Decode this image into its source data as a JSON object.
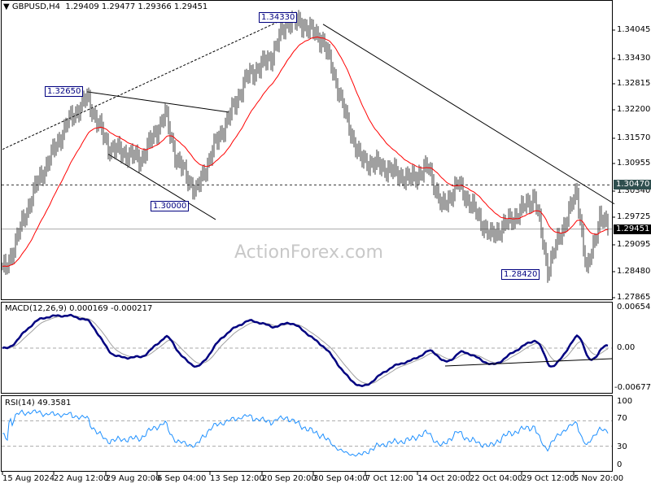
{
  "header": {
    "symbol": "GBPUSD,H4",
    "ohlc": "1.29409 1.29477 1.29366 1.29451"
  },
  "watermark": "ActionForex.com",
  "price_axis": [
    "1.34045",
    "1.33430",
    "1.32815",
    "1.32200",
    "1.31570",
    "1.30955",
    "1.30340",
    "1.29725",
    "1.29095",
    "1.28480",
    "1.27865"
  ],
  "price_tags": {
    "resistance": "1.30470",
    "current": "1.29451"
  },
  "annotations": [
    "1.32650",
    "1.34330",
    "1.30000",
    "1.28420"
  ],
  "macd": {
    "title": "MACD(12,26,9) 0.000169 -0.000217",
    "axis": [
      "0.006549",
      "0.00",
      "-0.006778"
    ]
  },
  "rsi": {
    "title": "RSI(14) 49.3581",
    "axis": [
      "100",
      "70",
      "30",
      "0"
    ]
  },
  "time_axis": [
    "15 Aug 2024",
    "22 Aug 12:00",
    "29 Aug 20:00",
    "6 Sep 04:00",
    "13 Sep 12:00",
    "20 Sep 20:00",
    "30 Sep 04:00",
    "7 Oct 12:00",
    "14 Oct 20:00",
    "22 Oct 04:00",
    "29 Oct 12:00",
    "5 Nov 20:00"
  ],
  "colors": {
    "ma": "#ff0000",
    "macd": "#000080",
    "signal": "#a0a0a0",
    "rsi": "#1e90ff",
    "bars": "#404040",
    "tag_resistance": "#2f4f4f",
    "tag_current": "#000000"
  },
  "chart_data": {
    "type": "ohlc",
    "instrument": "GBPUSD",
    "timeframe": "H4",
    "ylim": [
      1.27865,
      1.34045
    ],
    "close_keypoints": [
      [
        2,
        1.2852
      ],
      [
        20,
        1.304
      ],
      [
        40,
        1.3191
      ],
      [
        52,
        1.3248
      ],
      [
        65,
        1.3135
      ],
      [
        85,
        1.3106
      ],
      [
        100,
        1.321
      ],
      [
        107,
        1.3106
      ],
      [
        119,
        1.3031
      ],
      [
        130,
        1.3135
      ],
      [
        140,
        1.321
      ],
      [
        150,
        1.3295
      ],
      [
        165,
        1.3342
      ],
      [
        175,
        1.3427
      ],
      [
        185,
        1.3418
      ],
      [
        197,
        1.338
      ],
      [
        205,
        1.3286
      ],
      [
        212,
        1.3191
      ],
      [
        220,
        1.3106
      ],
      [
        235,
        1.3087
      ],
      [
        250,
        1.3059
      ],
      [
        262,
        1.3087
      ],
      [
        270,
        1.2993
      ],
      [
        280,
        1.3049
      ],
      [
        300,
        1.2927
      ],
      [
        315,
        1.2974
      ],
      [
        327,
        1.3021
      ],
      [
        335,
        1.2852
      ],
      [
        345,
        1.2955
      ],
      [
        353,
        1.3031
      ],
      [
        359,
        1.2843
      ],
      [
        367,
        1.2974
      ],
      [
        372,
        1.2945
      ]
    ],
    "levels": {
      "resistance": 1.3047,
      "current": 1.29451
    },
    "trendlines": [
      {
        "style": "dashed",
        "from": [
          0,
          1.3129
        ],
        "to": [
          177,
          1.3437
        ]
      },
      {
        "style": "solid",
        "from": [
          197,
          1.3418
        ],
        "to": [
          376,
          1.3003
        ]
      },
      {
        "style": "solid",
        "from": [
          52,
          1.3262
        ],
        "to": [
          139,
          1.3215
        ]
      },
      {
        "style": "solid",
        "from": [
          65,
          1.3118
        ],
        "to": [
          131,
          1.2967
        ]
      }
    ],
    "overlays": [
      "moving average (red)"
    ],
    "indicators": [
      "MACD(12,26,9)",
      "RSI(14)"
    ]
  }
}
